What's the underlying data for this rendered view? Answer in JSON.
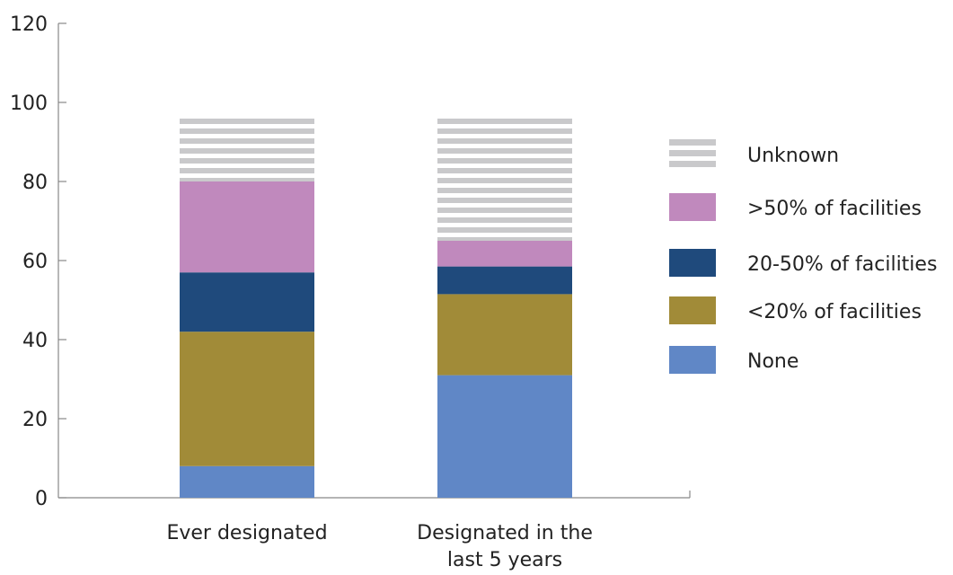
{
  "chart_data": {
    "type": "bar",
    "stacked": true,
    "categories": [
      "Ever designated",
      "Designated in the last 5 years"
    ],
    "series": [
      {
        "name": "None",
        "values": [
          8,
          31
        ],
        "color": "#6087c6",
        "pattern": "solid"
      },
      {
        "name": "<20% of facilities",
        "values": [
          34,
          20.5
        ],
        "color": "#a18b38",
        "pattern": "solid"
      },
      {
        "name": "20-50% of facilities",
        "values": [
          15,
          7
        ],
        "color": "#1f4a7c",
        "pattern": "solid"
      },
      {
        "name": ">50% of facilities",
        "values": [
          23,
          6.5
        ],
        "color": "#c089bd",
        "pattern": "solid"
      },
      {
        "name": "Unknown",
        "values": [
          17,
          32
        ],
        "color": "#c9c9cb",
        "pattern": "stripes"
      }
    ],
    "ylim": [
      0,
      120
    ],
    "yticks": [
      0,
      20,
      40,
      60,
      80,
      100,
      120
    ],
    "xlabel": "",
    "ylabel": "",
    "legend": "right",
    "grid": false
  }
}
